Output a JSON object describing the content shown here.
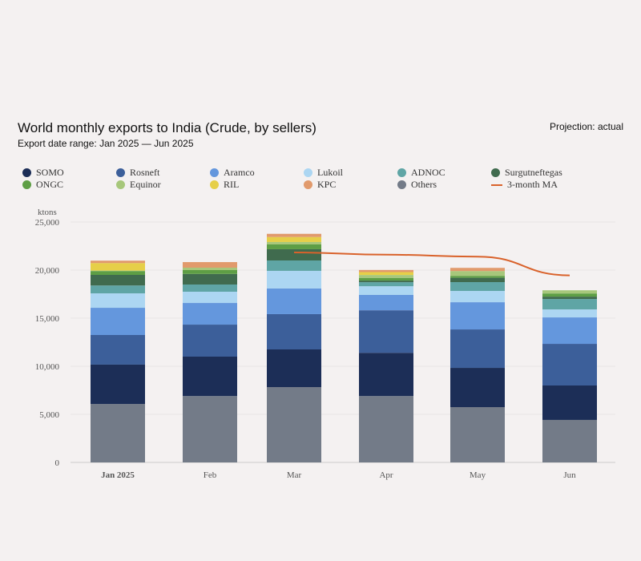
{
  "header": {
    "title": "World monthly exports to India (Crude, by sellers)",
    "subtitle": "Export date range: Jan 2025 — Jun 2025",
    "projection": "Projection: actual"
  },
  "chart_data": {
    "type": "bar",
    "stacked": true,
    "title": "World monthly exports to India (Crude, by sellers)",
    "ylabel": "ktons",
    "ylim": [
      0,
      25000
    ],
    "yticks": [
      "0",
      "5,000",
      "10,000",
      "15,000",
      "20,000",
      "25,000"
    ],
    "ytick_values": [
      0,
      5000,
      10000,
      15000,
      20000,
      25000
    ],
    "categories": [
      "Jan 2025",
      "Feb",
      "Mar",
      "Apr",
      "May",
      "Jun"
    ],
    "legend_placement": "top",
    "series": [
      {
        "name": "Others",
        "color": "#737b88",
        "values": [
          6080,
          6900,
          7830,
          6900,
          5750,
          4420
        ]
      },
      {
        "name": "SOMO",
        "color": "#1c2e57",
        "values": [
          4090,
          4100,
          3920,
          4500,
          4080,
          3580
        ]
      },
      {
        "name": "Rosneft",
        "color": "#3c5f9a",
        "values": [
          3080,
          3330,
          3670,
          4420,
          4000,
          4330
        ]
      },
      {
        "name": "Aramco",
        "color": "#6497dd",
        "values": [
          2830,
          2250,
          2670,
          1600,
          2830,
          2750
        ]
      },
      {
        "name": "Lukoil",
        "color": "#acd6f2",
        "values": [
          1500,
          1170,
          1830,
          900,
          1170,
          830
        ]
      },
      {
        "name": "ADNOC",
        "color": "#5fa5a5",
        "values": [
          820,
          750,
          1080,
          420,
          920,
          1080
        ]
      },
      {
        "name": "Surgutneftegas",
        "color": "#406b4e",
        "values": [
          1100,
          1100,
          1170,
          170,
          450,
          250
        ]
      },
      {
        "name": "ONGC",
        "color": "#5e9e45",
        "values": [
          400,
          400,
          500,
          280,
          200,
          330
        ]
      },
      {
        "name": "Equinor",
        "color": "#a7c77b",
        "values": [
          50,
          250,
          250,
          300,
          500,
          330
        ]
      },
      {
        "name": "RIL",
        "color": "#e6cf48",
        "values": [
          780,
          0,
          520,
          300,
          0,
          0
        ]
      },
      {
        "name": "KPC",
        "color": "#e19a6c",
        "values": [
          250,
          580,
          330,
          220,
          330,
          0
        ]
      }
    ],
    "line_series": {
      "name": "3-month MA",
      "color": "#d9622b",
      "values": [
        null,
        null,
        21830,
        21600,
        21400,
        19450
      ]
    }
  },
  "legend": [
    {
      "label": "SOMO",
      "color": "#1c2e57",
      "kind": "dot"
    },
    {
      "label": "Rosneft",
      "color": "#3c5f9a",
      "kind": "dot"
    },
    {
      "label": "Aramco",
      "color": "#6497dd",
      "kind": "dot"
    },
    {
      "label": "Lukoil",
      "color": "#acd6f2",
      "kind": "dot"
    },
    {
      "label": "ADNOC",
      "color": "#5fa5a5",
      "kind": "dot"
    },
    {
      "label": "Surgutneftegas",
      "color": "#406b4e",
      "kind": "dot"
    },
    {
      "label": "ONGC",
      "color": "#5e9e45",
      "kind": "dot"
    },
    {
      "label": "Equinor",
      "color": "#a7c77b",
      "kind": "dot"
    },
    {
      "label": "RIL",
      "color": "#e6cf48",
      "kind": "dot"
    },
    {
      "label": "KPC",
      "color": "#e19a6c",
      "kind": "dot"
    },
    {
      "label": "Others",
      "color": "#737b88",
      "kind": "dot"
    },
    {
      "label": "3-month MA",
      "color": "#d9622b",
      "kind": "line"
    }
  ]
}
